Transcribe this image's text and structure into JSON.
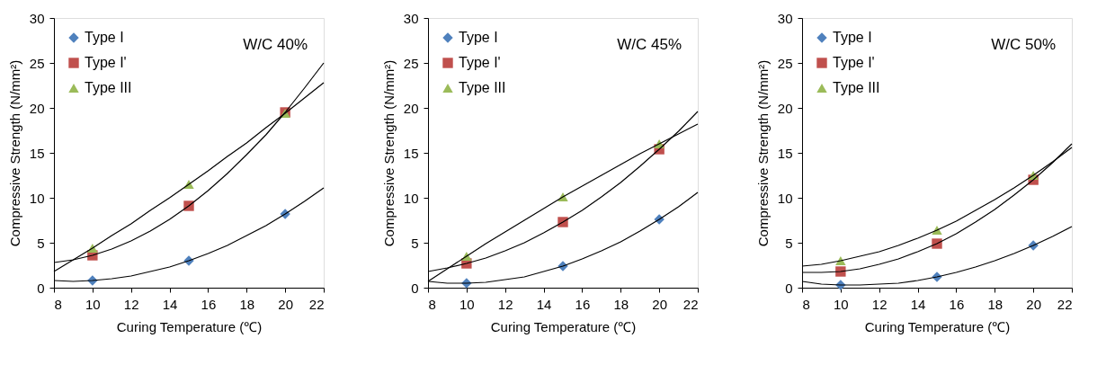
{
  "chart_data": [
    {
      "type": "scatter",
      "xlabel": "Curing Temperature (℃)",
      "ylabel": "Compressive Strength (N/mm²)",
      "xlim": [
        8,
        22
      ],
      "xticks": [
        8,
        10,
        12,
        14,
        16,
        18,
        20,
        22
      ],
      "ylim": [
        0,
        30
      ],
      "yticks": [
        0,
        5,
        10,
        15,
        20,
        25,
        30
      ],
      "grid": false,
      "legend": "top left",
      "annotations": [
        "W/C  40%"
      ],
      "series": [
        {
          "name": "Type I",
          "color": "#4f81bd",
          "marker": "diamond",
          "x": [
            10,
            15,
            20
          ],
          "values": [
            0.8,
            3.0,
            8.2
          ]
        },
        {
          "name": "Type I'",
          "color": "#c0504d",
          "marker": "square",
          "x": [
            10,
            15,
            20
          ],
          "values": [
            3.6,
            9.1,
            19.5
          ]
        },
        {
          "name": "Type III",
          "color": "#9bbb59",
          "marker": "triangle",
          "x": [
            10,
            15,
            20
          ],
          "values": [
            4.4,
            11.5,
            19.4
          ]
        },
        {
          "type": "line",
          "color": "#000000",
          "x": [
            8,
            9,
            10,
            11,
            12,
            13,
            14,
            15,
            16,
            17,
            18,
            19,
            20,
            21,
            22
          ],
          "values": [
            0.8,
            0.7,
            0.8,
            1.0,
            1.3,
            1.8,
            2.3,
            3.0,
            3.8,
            4.7,
            5.8,
            6.9,
            8.2,
            9.6,
            11.1
          ]
        },
        {
          "type": "line",
          "color": "#000000",
          "x": [
            8,
            9,
            10,
            11,
            12,
            13,
            14,
            15,
            16,
            17,
            18,
            19,
            20,
            21,
            22
          ],
          "values": [
            2.8,
            3.1,
            3.6,
            4.3,
            5.2,
            6.3,
            7.6,
            9.1,
            10.8,
            12.7,
            14.8,
            17.0,
            19.5,
            22.2,
            25.0
          ]
        },
        {
          "type": "line",
          "color": "#000000",
          "x": [
            8,
            9,
            10,
            11,
            12,
            13,
            14,
            15,
            16,
            17,
            18,
            19,
            20,
            21,
            22
          ],
          "values": [
            1.8,
            3.1,
            4.4,
            5.8,
            7.1,
            8.6,
            10.0,
            11.5,
            13.0,
            14.6,
            16.1,
            17.8,
            19.4,
            21.1,
            22.8
          ]
        }
      ]
    },
    {
      "type": "scatter",
      "xlabel": "Curing Temperature (℃)",
      "ylabel": "Compressive Strength (N/mm²)",
      "xlim": [
        8,
        22
      ],
      "xticks": [
        8,
        10,
        12,
        14,
        16,
        18,
        20,
        22
      ],
      "ylim": [
        0,
        30
      ],
      "yticks": [
        0,
        5,
        10,
        15,
        20,
        25,
        30
      ],
      "grid": false,
      "legend": "top left",
      "annotations": [
        "W/C  45%"
      ],
      "series": [
        {
          "name": "Type I",
          "color": "#4f81bd",
          "marker": "diamond",
          "x": [
            10,
            15,
            20
          ],
          "values": [
            0.5,
            2.4,
            7.6
          ]
        },
        {
          "name": "Type I'",
          "color": "#c0504d",
          "marker": "square",
          "x": [
            10,
            15,
            20
          ],
          "values": [
            2.7,
            7.3,
            15.4
          ]
        },
        {
          "name": "Type III",
          "color": "#9bbb59",
          "marker": "triangle",
          "x": [
            10,
            15,
            20
          ],
          "values": [
            3.5,
            10.1,
            16.0
          ]
        },
        {
          "type": "line",
          "color": "#000000",
          "x": [
            8,
            9,
            10,
            11,
            12,
            13,
            14,
            15,
            16,
            17,
            18,
            19,
            20,
            21,
            22
          ],
          "values": [
            0.7,
            0.5,
            0.5,
            0.6,
            0.9,
            1.2,
            1.8,
            2.4,
            3.2,
            4.1,
            5.1,
            6.3,
            7.6,
            9.0,
            10.6
          ]
        },
        {
          "type": "line",
          "color": "#000000",
          "x": [
            8,
            9,
            10,
            11,
            12,
            13,
            14,
            15,
            16,
            17,
            18,
            19,
            20,
            21,
            22
          ],
          "values": [
            1.8,
            2.2,
            2.7,
            3.3,
            4.1,
            5.0,
            6.1,
            7.3,
            8.6,
            10.1,
            11.7,
            13.5,
            15.4,
            17.4,
            19.6
          ]
        },
        {
          "type": "line",
          "color": "#000000",
          "x": [
            8,
            9,
            10,
            11,
            12,
            13,
            14,
            15,
            16,
            17,
            18,
            19,
            20,
            21,
            22
          ],
          "values": [
            0.7,
            2.1,
            3.5,
            4.9,
            6.2,
            7.5,
            8.8,
            10.1,
            11.3,
            12.5,
            13.7,
            14.9,
            16.0,
            17.1,
            18.2
          ]
        }
      ]
    },
    {
      "type": "scatter",
      "xlabel": "Curing Temperature (℃)",
      "ylabel": "Compressive Strength (N/mm²)",
      "xlim": [
        8,
        22
      ],
      "xticks": [
        8,
        10,
        12,
        14,
        16,
        18,
        20,
        22
      ],
      "ylim": [
        0,
        30
      ],
      "yticks": [
        0,
        5,
        10,
        15,
        20,
        25,
        30
      ],
      "grid": false,
      "legend": "top left",
      "annotations": [
        "W/C  50%"
      ],
      "series": [
        {
          "name": "Type I",
          "color": "#4f81bd",
          "marker": "diamond",
          "x": [
            10,
            15,
            20
          ],
          "values": [
            0.3,
            1.2,
            4.7
          ]
        },
        {
          "name": "Type I'",
          "color": "#c0504d",
          "marker": "square",
          "x": [
            10,
            15,
            20
          ],
          "values": [
            1.8,
            4.9,
            12.0
          ]
        },
        {
          "name": "Type III",
          "color": "#9bbb59",
          "marker": "triangle",
          "x": [
            10,
            15,
            20
          ],
          "values": [
            3.0,
            6.4,
            12.5
          ]
        },
        {
          "type": "line",
          "color": "#000000",
          "x": [
            8,
            9,
            10,
            11,
            12,
            13,
            14,
            15,
            16,
            17,
            18,
            19,
            20,
            21,
            22
          ],
          "values": [
            0.7,
            0.4,
            0.3,
            0.3,
            0.4,
            0.5,
            0.8,
            1.2,
            1.7,
            2.3,
            3.0,
            3.8,
            4.7,
            5.7,
            6.8
          ]
        },
        {
          "type": "line",
          "color": "#000000",
          "x": [
            8,
            9,
            10,
            11,
            12,
            13,
            14,
            15,
            16,
            17,
            18,
            19,
            20,
            21,
            22
          ],
          "values": [
            1.7,
            1.7,
            1.8,
            2.1,
            2.6,
            3.2,
            4.0,
            4.9,
            6.0,
            7.3,
            8.7,
            10.3,
            12.0,
            13.9,
            16.0
          ]
        },
        {
          "type": "line",
          "color": "#000000",
          "x": [
            8,
            9,
            10,
            11,
            12,
            13,
            14,
            15,
            16,
            17,
            18,
            19,
            20,
            21,
            22
          ],
          "values": [
            2.4,
            2.6,
            3.0,
            3.5,
            4.0,
            4.7,
            5.5,
            6.4,
            7.4,
            8.6,
            9.8,
            11.1,
            12.5,
            14.0,
            15.6
          ]
        }
      ]
    }
  ]
}
